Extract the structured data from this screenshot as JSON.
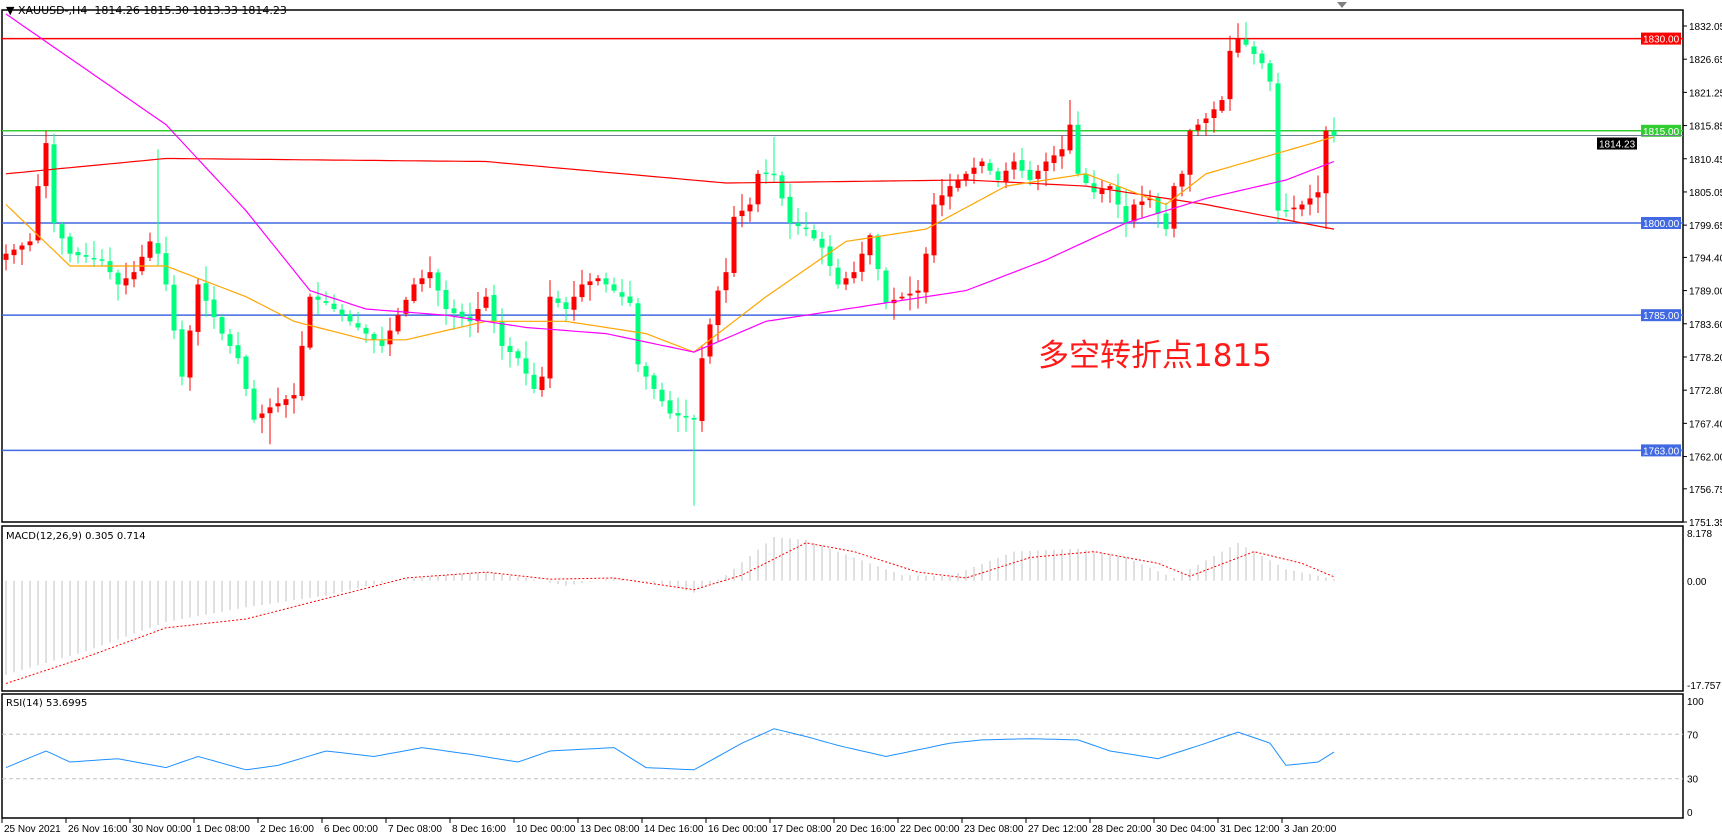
{
  "header": {
    "symbol": "XAUUSD-,H4",
    "open": "1814.26",
    "high": "1815.30",
    "low": "1813.33",
    "close": "1814.23"
  },
  "annotation": "多空转折点1815",
  "colors": {
    "up_candle": "#ff0000",
    "down_candle": "#00ff7f",
    "ma_fast": "#ffa500",
    "ma_mid": "#ff00ff",
    "ma_slow": "#ff0000",
    "rsi": "#1e90ff",
    "macd_hist": "#c0c0c0",
    "macd_signal": "#ff0000"
  },
  "chart_data": [
    {
      "type": "candlestick",
      "title": "XAUUSD-,H4",
      "ylim": [
        1751.35,
        1832.05
      ],
      "y_ticks": [
        "1832.05",
        "1826.65",
        "1821.25",
        "1815.85",
        "1810.45",
        "1805.05",
        "1799.65",
        "1794.40",
        "1789.00",
        "1783.60",
        "1778.20",
        "1772.80",
        "1767.40",
        "1762.00",
        "1756.75",
        "1751.35"
      ],
      "x_ticks": [
        "25 Nov 2021",
        "26 Nov 16:00",
        "30 Nov 00:00",
        "1 Dec 08:00",
        "2 Dec 16:00",
        "6 Dec 00:00",
        "7 Dec 08:00",
        "8 Dec 16:00",
        "10 Dec 00:00",
        "13 Dec 08:00",
        "14 Dec 16:00",
        "16 Dec 00:00",
        "17 Dec 08:00",
        "20 Dec 16:00",
        "22 Dec 00:00",
        "23 Dec 08:00",
        "27 Dec 12:00",
        "28 Dec 20:00",
        "30 Dec 04:00",
        "31 Dec 12:00",
        "3 Jan 20:00"
      ],
      "bar_count": 167,
      "close_path": [
        [
          0,
          1795
        ],
        [
          3,
          1797
        ],
        [
          4,
          1806
        ],
        [
          5,
          1813
        ],
        [
          6,
          1800
        ],
        [
          8,
          1795
        ],
        [
          12,
          1794
        ],
        [
          14,
          1790
        ],
        [
          16,
          1792
        ],
        [
          18,
          1797
        ],
        [
          19,
          1795
        ],
        [
          20,
          1790
        ],
        [
          22,
          1775
        ],
        [
          24,
          1790
        ],
        [
          27,
          1782
        ],
        [
          29,
          1778
        ],
        [
          31,
          1768
        ],
        [
          33,
          1770
        ],
        [
          36,
          1772
        ],
        [
          38,
          1788
        ],
        [
          40,
          1787
        ],
        [
          43,
          1784
        ],
        [
          45,
          1782
        ],
        [
          47,
          1780
        ],
        [
          49,
          1785
        ],
        [
          51,
          1790
        ],
        [
          53,
          1792
        ],
        [
          55,
          1786
        ],
        [
          58,
          1784
        ],
        [
          60,
          1788
        ],
        [
          62,
          1780
        ],
        [
          64,
          1778
        ],
        [
          66,
          1773
        ],
        [
          67,
          1775
        ],
        [
          68,
          1788
        ],
        [
          70,
          1786
        ],
        [
          72,
          1790
        ],
        [
          74,
          1791
        ],
        [
          76,
          1789
        ],
        [
          78,
          1787
        ],
        [
          79,
          1777
        ],
        [
          81,
          1773
        ],
        [
          83,
          1769
        ],
        [
          86,
          1768
        ],
        [
          87,
          1778
        ],
        [
          89,
          1789
        ],
        [
          90,
          1792
        ],
        [
          91,
          1801
        ],
        [
          93,
          1803
        ],
        [
          94,
          1808
        ],
        [
          96,
          1808
        ],
        [
          98,
          1800
        ],
        [
          100,
          1799
        ],
        [
          102,
          1796
        ],
        [
          104,
          1790
        ],
        [
          106,
          1792
        ],
        [
          108,
          1798
        ],
        [
          110,
          1787
        ],
        [
          112,
          1788
        ],
        [
          114,
          1789
        ],
        [
          115,
          1795
        ],
        [
          116,
          1803
        ],
        [
          118,
          1806
        ],
        [
          120,
          1808
        ],
        [
          122,
          1810
        ],
        [
          124,
          1807
        ],
        [
          126,
          1810
        ],
        [
          128,
          1807
        ],
        [
          130,
          1810
        ],
        [
          132,
          1812
        ],
        [
          133,
          1816
        ],
        [
          134,
          1808
        ],
        [
          136,
          1805
        ],
        [
          138,
          1806
        ],
        [
          140,
          1800
        ],
        [
          141,
          1803
        ],
        [
          143,
          1804
        ],
        [
          145,
          1799
        ],
        [
          146,
          1806
        ],
        [
          147,
          1808
        ],
        [
          148,
          1815
        ],
        [
          150,
          1817
        ],
        [
          152,
          1820
        ],
        [
          153,
          1828
        ],
        [
          154,
          1830
        ],
        [
          155,
          1829
        ],
        [
          157,
          1826
        ],
        [
          158,
          1823
        ],
        [
          159,
          1802
        ],
        [
          160,
          1802
        ],
        [
          162,
          1803
        ],
        [
          164,
          1805
        ],
        [
          165,
          1815
        ],
        [
          166,
          1814.23
        ]
      ],
      "notable_extremes": [
        {
          "bar": 5,
          "high": 1815
        },
        {
          "bar": 19,
          "high": 1812
        },
        {
          "bar": 33,
          "low": 1764
        },
        {
          "bar": 86,
          "low": 1754
        },
        {
          "bar": 96,
          "high": 1814
        },
        {
          "bar": 133,
          "high": 1820
        },
        {
          "bar": 154,
          "high": 1832.5
        },
        {
          "bar": 165,
          "low": 1799
        }
      ],
      "moving_averages": {
        "fast": [
          [
            0,
            1803
          ],
          [
            8,
            1793
          ],
          [
            20,
            1793
          ],
          [
            30,
            1788
          ],
          [
            36,
            1784
          ],
          [
            45,
            1781
          ],
          [
            50,
            1781
          ],
          [
            60,
            1784
          ],
          [
            70,
            1784
          ],
          [
            80,
            1782
          ],
          [
            86,
            1779
          ],
          [
            95,
            1788
          ],
          [
            105,
            1797
          ],
          [
            115,
            1799
          ],
          [
            125,
            1806
          ],
          [
            135,
            1808
          ],
          [
            145,
            1803
          ],
          [
            150,
            1808
          ],
          [
            158,
            1811
          ],
          [
            166,
            1814
          ]
        ],
        "mid": [
          [
            0,
            1834
          ],
          [
            10,
            1825
          ],
          [
            20,
            1816
          ],
          [
            30,
            1802
          ],
          [
            38,
            1789
          ],
          [
            45,
            1786
          ],
          [
            55,
            1785
          ],
          [
            65,
            1783
          ],
          [
            75,
            1782
          ],
          [
            86,
            1779
          ],
          [
            95,
            1784
          ],
          [
            110,
            1787
          ],
          [
            120,
            1789
          ],
          [
            130,
            1794
          ],
          [
            140,
            1800
          ],
          [
            150,
            1804
          ],
          [
            160,
            1807
          ],
          [
            166,
            1810
          ]
        ],
        "slow": [
          [
            0,
            1808
          ],
          [
            20,
            1810.5
          ],
          [
            60,
            1810
          ],
          [
            90,
            1806.5
          ],
          [
            120,
            1807
          ],
          [
            135,
            1806
          ],
          [
            150,
            1803
          ],
          [
            166,
            1799
          ]
        ]
      },
      "horizontal_levels": [
        {
          "value": 1830.0,
          "label": "1830.00",
          "color": "#ff0000"
        },
        {
          "value": 1815.0,
          "label": "1815.00",
          "color": "#32cd32"
        },
        {
          "value": 1800.0,
          "label": "1800.00",
          "color": "#4169e1"
        },
        {
          "value": 1785.0,
          "label": "1785.00",
          "color": "#4169e1"
        },
        {
          "value": 1763.0,
          "label": "1763.00",
          "color": "#4169e1"
        }
      ],
      "current_price": {
        "value": 1814.23,
        "label": "1814.23"
      }
    },
    {
      "type": "bar",
      "title": "MACD(12,26,9) 0.305 0.714",
      "ylim": [
        -17.757,
        8.178
      ],
      "y_ticks": [
        "8.178",
        "0.00",
        "-17.757"
      ],
      "histogram": [
        [
          0,
          -16
        ],
        [
          10,
          -12
        ],
        [
          20,
          -7
        ],
        [
          30,
          -4.5
        ],
        [
          40,
          -2.5
        ],
        [
          48,
          0
        ],
        [
          55,
          1
        ],
        [
          60,
          1.5
        ],
        [
          65,
          0.5
        ],
        [
          70,
          -0.8
        ],
        [
          76,
          0.5
        ],
        [
          82,
          -0.5
        ],
        [
          86,
          -2
        ],
        [
          90,
          1
        ],
        [
          96,
          7.5
        ],
        [
          100,
          7
        ],
        [
          106,
          4
        ],
        [
          112,
          1
        ],
        [
          118,
          0.8
        ],
        [
          126,
          5
        ],
        [
          134,
          5.5
        ],
        [
          140,
          4
        ],
        [
          146,
          0.5
        ],
        [
          154,
          6.5
        ],
        [
          160,
          2
        ],
        [
          166,
          0.3
        ]
      ],
      "signal": [
        [
          0,
          -17.5
        ],
        [
          10,
          -13
        ],
        [
          20,
          -8
        ],
        [
          30,
          -6.5
        ],
        [
          40,
          -3
        ],
        [
          50,
          0.5
        ],
        [
          60,
          1.5
        ],
        [
          68,
          0.3
        ],
        [
          76,
          0.5
        ],
        [
          86,
          -1.5
        ],
        [
          92,
          1
        ],
        [
          100,
          6.5
        ],
        [
          106,
          5
        ],
        [
          114,
          1.5
        ],
        [
          120,
          0.5
        ],
        [
          128,
          4
        ],
        [
          136,
          5
        ],
        [
          144,
          3
        ],
        [
          148,
          0.8
        ],
        [
          156,
          5
        ],
        [
          162,
          3
        ],
        [
          166,
          0.7
        ]
      ]
    },
    {
      "type": "line",
      "title": "RSI(14) 53.6995",
      "ylim": [
        0,
        100
      ],
      "y_ticks": [
        "100",
        "70",
        "30",
        "0"
      ],
      "levels": [
        70,
        30
      ],
      "values": [
        [
          0,
          40
        ],
        [
          5,
          55
        ],
        [
          8,
          45
        ],
        [
          14,
          48
        ],
        [
          20,
          40
        ],
        [
          24,
          50
        ],
        [
          30,
          38
        ],
        [
          34,
          42
        ],
        [
          40,
          55
        ],
        [
          46,
          50
        ],
        [
          52,
          58
        ],
        [
          58,
          52
        ],
        [
          64,
          45
        ],
        [
          68,
          55
        ],
        [
          76,
          58
        ],
        [
          80,
          40
        ],
        [
          86,
          38
        ],
        [
          92,
          62
        ],
        [
          96,
          75
        ],
        [
          100,
          68
        ],
        [
          104,
          60
        ],
        [
          110,
          50
        ],
        [
          114,
          56
        ],
        [
          118,
          62
        ],
        [
          122,
          65
        ],
        [
          128,
          66
        ],
        [
          134,
          65
        ],
        [
          138,
          55
        ],
        [
          144,
          48
        ],
        [
          150,
          62
        ],
        [
          154,
          72
        ],
        [
          158,
          62
        ],
        [
          160,
          42
        ],
        [
          164,
          45
        ],
        [
          166,
          54
        ]
      ]
    }
  ]
}
